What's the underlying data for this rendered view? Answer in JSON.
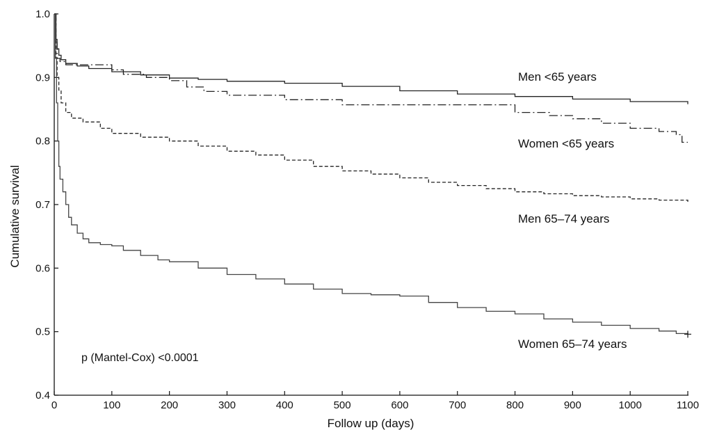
{
  "chart_data": {
    "type": "line",
    "xlabel": "Follow up (days)",
    "ylabel": "Cumulative survival",
    "xlim": [
      0,
      1100
    ],
    "ylim": [
      0.4,
      1.0
    ],
    "x_ticks": [
      "0",
      "100",
      "200",
      "300",
      "400",
      "500",
      "600",
      "700",
      "800",
      "900",
      "1000",
      "1100"
    ],
    "y_ticks": [
      "0.4",
      "0.5",
      "0.6",
      "0.7",
      "0.8",
      "0.9",
      "1.0"
    ],
    "grid": false,
    "legend": "none (series labelled directly on plot)",
    "annotation": "p (Mantel-Cox) <0.0001",
    "series": [
      {
        "name": "Men <65 years",
        "style": "solid",
        "color": "#222222",
        "x": [
          0,
          3,
          5,
          8,
          12,
          20,
          40,
          60,
          100,
          150,
          200,
          250,
          300,
          400,
          500,
          600,
          700,
          800,
          900,
          1000,
          1100
        ],
        "y": [
          1.0,
          0.96,
          0.945,
          0.935,
          0.928,
          0.922,
          0.918,
          0.914,
          0.909,
          0.904,
          0.899,
          0.897,
          0.894,
          0.891,
          0.886,
          0.879,
          0.874,
          0.87,
          0.866,
          0.862,
          0.858
        ]
      },
      {
        "name": "Women <65 years",
        "style": "dashdot",
        "color": "#222222",
        "x": [
          0,
          3,
          5,
          10,
          20,
          50,
          100,
          120,
          160,
          200,
          230,
          260,
          300,
          400,
          500,
          600,
          700,
          780,
          800,
          860,
          900,
          950,
          1000,
          1050,
          1080,
          1090,
          1100
        ],
        "y": [
          1.0,
          0.96,
          0.93,
          0.925,
          0.92,
          0.92,
          0.912,
          0.905,
          0.9,
          0.895,
          0.885,
          0.878,
          0.872,
          0.865,
          0.857,
          0.857,
          0.857,
          0.857,
          0.845,
          0.84,
          0.835,
          0.828,
          0.82,
          0.815,
          0.81,
          0.798,
          0.798
        ]
      },
      {
        "name": "Men 65–74 years",
        "style": "dashed",
        "color": "#222222",
        "x": [
          0,
          3,
          5,
          8,
          12,
          20,
          30,
          50,
          80,
          100,
          150,
          200,
          250,
          300,
          350,
          400,
          450,
          500,
          550,
          600,
          650,
          700,
          750,
          800,
          850,
          900,
          950,
          1000,
          1050,
          1100
        ],
        "y": [
          1.0,
          0.93,
          0.9,
          0.88,
          0.86,
          0.845,
          0.836,
          0.83,
          0.82,
          0.812,
          0.806,
          0.8,
          0.792,
          0.784,
          0.778,
          0.77,
          0.76,
          0.753,
          0.748,
          0.742,
          0.735,
          0.73,
          0.725,
          0.72,
          0.717,
          0.714,
          0.712,
          0.709,
          0.707,
          0.704
        ]
      },
      {
        "name": "Women 65–74 years",
        "style": "solid",
        "color": "#444444",
        "x": [
          0,
          2,
          4,
          6,
          8,
          10,
          15,
          20,
          25,
          30,
          40,
          50,
          60,
          80,
          100,
          120,
          150,
          180,
          200,
          250,
          300,
          350,
          400,
          450,
          500,
          550,
          600,
          650,
          700,
          750,
          800,
          850,
          900,
          950,
          1000,
          1050,
          1080,
          1100
        ],
        "y": [
          1.0,
          0.93,
          0.86,
          0.8,
          0.76,
          0.74,
          0.72,
          0.7,
          0.68,
          0.668,
          0.655,
          0.646,
          0.64,
          0.637,
          0.635,
          0.628,
          0.62,
          0.613,
          0.61,
          0.6,
          0.59,
          0.583,
          0.575,
          0.567,
          0.56,
          0.558,
          0.556,
          0.546,
          0.538,
          0.532,
          0.528,
          0.52,
          0.515,
          0.51,
          0.505,
          0.501,
          0.497,
          0.496
        ]
      }
    ]
  }
}
